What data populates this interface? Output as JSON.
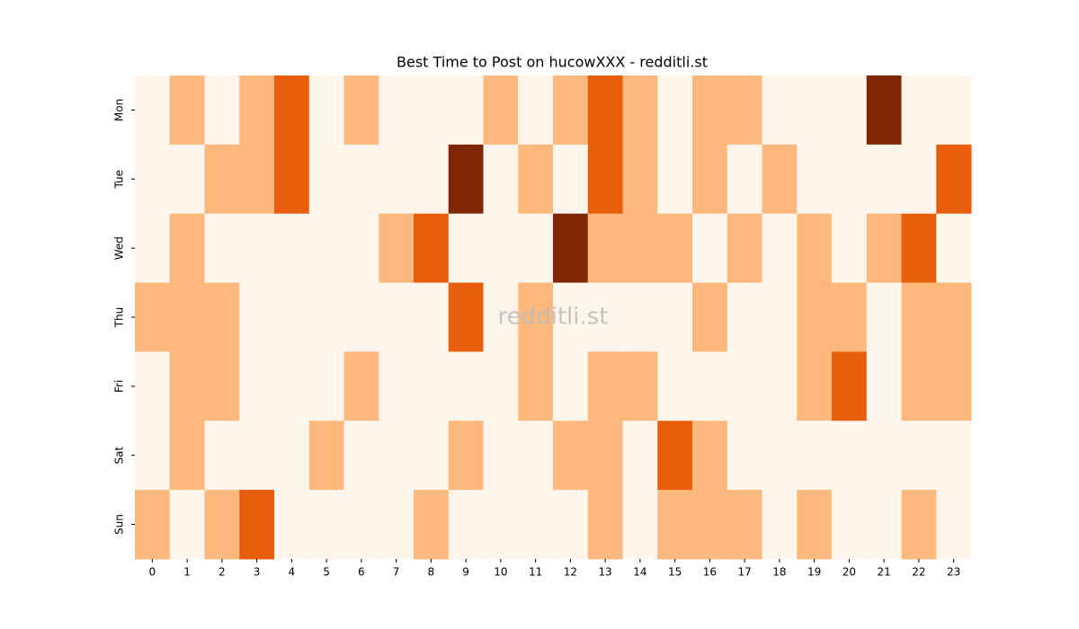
{
  "chart_data": {
    "type": "heatmap",
    "title": "Best Time to Post on hucowXXX - redditli.st",
    "watermark": "redditli.st",
    "colormap": "Oranges",
    "x": [
      0,
      1,
      2,
      3,
      4,
      5,
      6,
      7,
      8,
      9,
      10,
      11,
      12,
      13,
      14,
      15,
      16,
      17,
      18,
      19,
      20,
      21,
      22,
      23
    ],
    "y": [
      "Mon",
      "Tue",
      "Wed",
      "Thu",
      "Fri",
      "Sat",
      "Sun"
    ],
    "values": [
      [
        0,
        1,
        0,
        1,
        2,
        0,
        1,
        0,
        0,
        0,
        1,
        0,
        1,
        2,
        1,
        0,
        1,
        1,
        0,
        0,
        0,
        3,
        0,
        0
      ],
      [
        0,
        0,
        1,
        1,
        2,
        0,
        0,
        0,
        0,
        3,
        0,
        1,
        0,
        2,
        1,
        0,
        1,
        0,
        1,
        0,
        0,
        0,
        0,
        2
      ],
      [
        0,
        1,
        0,
        0,
        0,
        0,
        0,
        1,
        2,
        0,
        0,
        0,
        3,
        1,
        1,
        1,
        0,
        1,
        0,
        1,
        0,
        1,
        2,
        0
      ],
      [
        1,
        1,
        1,
        0,
        0,
        0,
        0,
        0,
        0,
        2,
        0,
        1,
        0,
        0,
        0,
        0,
        1,
        0,
        0,
        1,
        1,
        0,
        1,
        1
      ],
      [
        0,
        1,
        1,
        0,
        0,
        0,
        1,
        0,
        0,
        0,
        0,
        1,
        0,
        1,
        1,
        0,
        0,
        0,
        0,
        1,
        2,
        0,
        1,
        1
      ],
      [
        0,
        1,
        0,
        0,
        0,
        1,
        0,
        0,
        0,
        1,
        0,
        0,
        1,
        1,
        0,
        2,
        1,
        0,
        0,
        0,
        0,
        0,
        0,
        0
      ],
      [
        1,
        0,
        1,
        2,
        0,
        0,
        0,
        0,
        1,
        0,
        0,
        0,
        0,
        1,
        0,
        1,
        1,
        1,
        0,
        1,
        0,
        0,
        1,
        0
      ]
    ]
  }
}
